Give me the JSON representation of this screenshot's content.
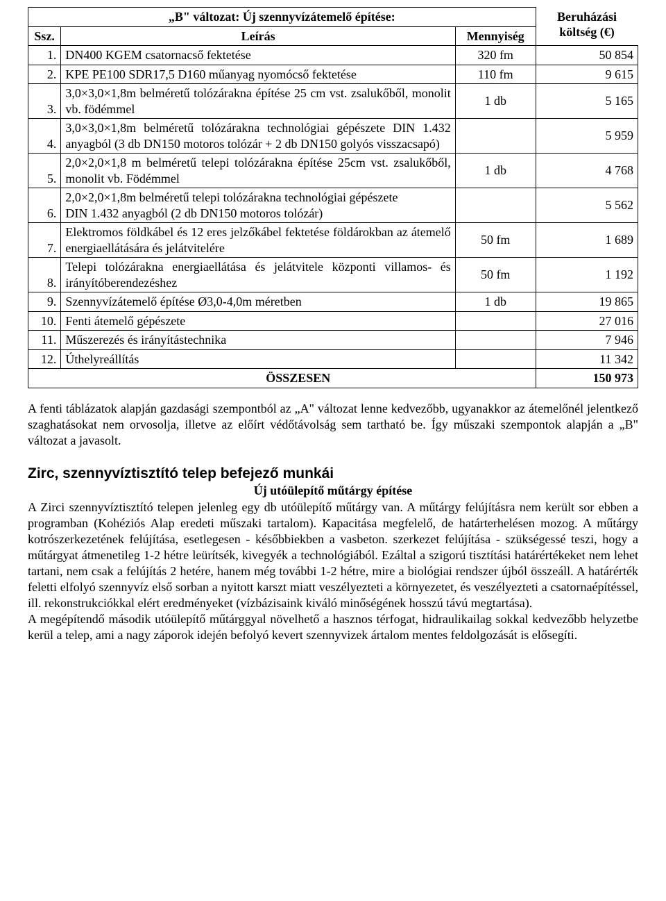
{
  "table": {
    "title": "„B\" változat: Új szennyvízátemelő építése:",
    "headers": {
      "ssz": "Ssz.",
      "desc": "Leírás",
      "qty": "Mennyiség",
      "cost": "Beruházási költség (€)"
    },
    "rows": [
      {
        "n": "1.",
        "desc": "DN400 KGEM csatornacső fektetése",
        "qty": "320 fm",
        "cost": "50 854"
      },
      {
        "n": "2.",
        "desc": "KPE PE100 SDR17,5 D160 műanyag nyomócső fektetése",
        "qty": "110 fm",
        "cost": "9 615"
      },
      {
        "n": "3.",
        "desc": "3,0×3,0×1,8m belméretű tolózárakna építése 25 cm vst. zsalukőből, monolit vb. födémmel",
        "qty": "1 db",
        "cost": "5 165"
      },
      {
        "n": "4.",
        "desc": "3,0×3,0×1,8m belméretű tolózárakna technológiai gépészete DIN 1.432 anyagból (3 db DN150 motoros tolózár + 2 db DN150 golyós visszacsapó)",
        "qty": "",
        "cost": "5 959"
      },
      {
        "n": "5.",
        "desc": "2,0×2,0×1,8 m belméretű telepi tolózárakna építése 25cm vst. zsalukőből, monolit vb. Födémmel",
        "qty": "1 db",
        "cost": "4 768"
      },
      {
        "n": "6.",
        "desc": "2,0×2,0×1,8m belméretű telepi tolózárakna technológiai gépészete\nDIN 1.432 anyagból (2 db DN150 motoros tolózár)",
        "qty": "",
        "cost": "5 562"
      },
      {
        "n": "7.",
        "desc": "Elektromos földkábel és 12 eres jelzőkábel fektetése földárokban az átemelő energiaellátására és jelátvitelére",
        "qty": "50 fm",
        "cost": "1 689"
      },
      {
        "n": "8.",
        "desc": "Telepi tolózárakna energiaellátása és jelátvitele központi villamos- és irányítóberendezéshez",
        "qty": "50 fm",
        "cost": "1 192"
      },
      {
        "n": "9.",
        "desc": "Szennyvízátemelő építése Ø3,0-4,0m méretben",
        "qty": "1 db",
        "cost": "19 865"
      },
      {
        "n": "10.",
        "desc": "Fenti átemelő gépészete",
        "qty": "",
        "cost": "27 016"
      },
      {
        "n": "11.",
        "desc": "Műszerezés és irányítástechnika",
        "qty": "",
        "cost": "7 946"
      },
      {
        "n": "12.",
        "desc": "Úthelyreállítás",
        "qty": "",
        "cost": "11 342"
      }
    ],
    "sum_label": "ÖSSZESEN",
    "sum_value": "150 973"
  },
  "para1": "A fenti táblázatok alapján gazdasági szempontból az „A\" változat lenne kedvezőbb, ugyanakkor az átemelőnél jelentkező szaghatásokat nem orvosolja, illetve az előírt védőtávolság sem tartható be. Így műszaki szempontok alapján a „B\" változat a javasolt.",
  "section_heading": "Zirc, szennyvíztisztító telep befejező munkái",
  "subheading": "Új utóülepítő műtárgy építése",
  "para2": "A Zirci szennyvíztisztító telepen jelenleg egy db utóülepítő műtárgy van. A műtárgy felújításra nem került sor ebben a programban (Kohéziós Alap eredeti műszaki tartalom). Kapacitása megfelelő, de határterhelésen mozog. A műtárgy kotrószerkezetének felújítása, esetlegesen - későbbiekben a vasbeton. szerkezet felújítása - szükségessé teszi, hogy a műtárgyat átmenetileg 1-2 hétre leürítsék, kivegyék a technológiából. Ezáltal a szigorú tisztítási határértékeket nem lehet tartani, nem csak a felújítás 2 hetére, hanem még további 1-2 hétre, mire a biológiai rendszer újból összeáll. A határérték feletti elfolyó szennyvíz első sorban a nyitott karszt miatt veszélyezteti a környezetet, és veszélyezteti a csatornaépítéssel, ill. rekonstrukciókkal elért eredményeket (vízbázisaink kiváló minőségének hosszú távú megtartása).",
  "para3": "A megépítendő második utóülepítő műtárggyal növelhető a hasznos térfogat, hidraulikailag sokkal kedvezőbb helyzetbe kerül a telep, ami a nagy záporok idején befolyó kevert szennyvizek ártalom mentes feldolgozását is elősegíti."
}
